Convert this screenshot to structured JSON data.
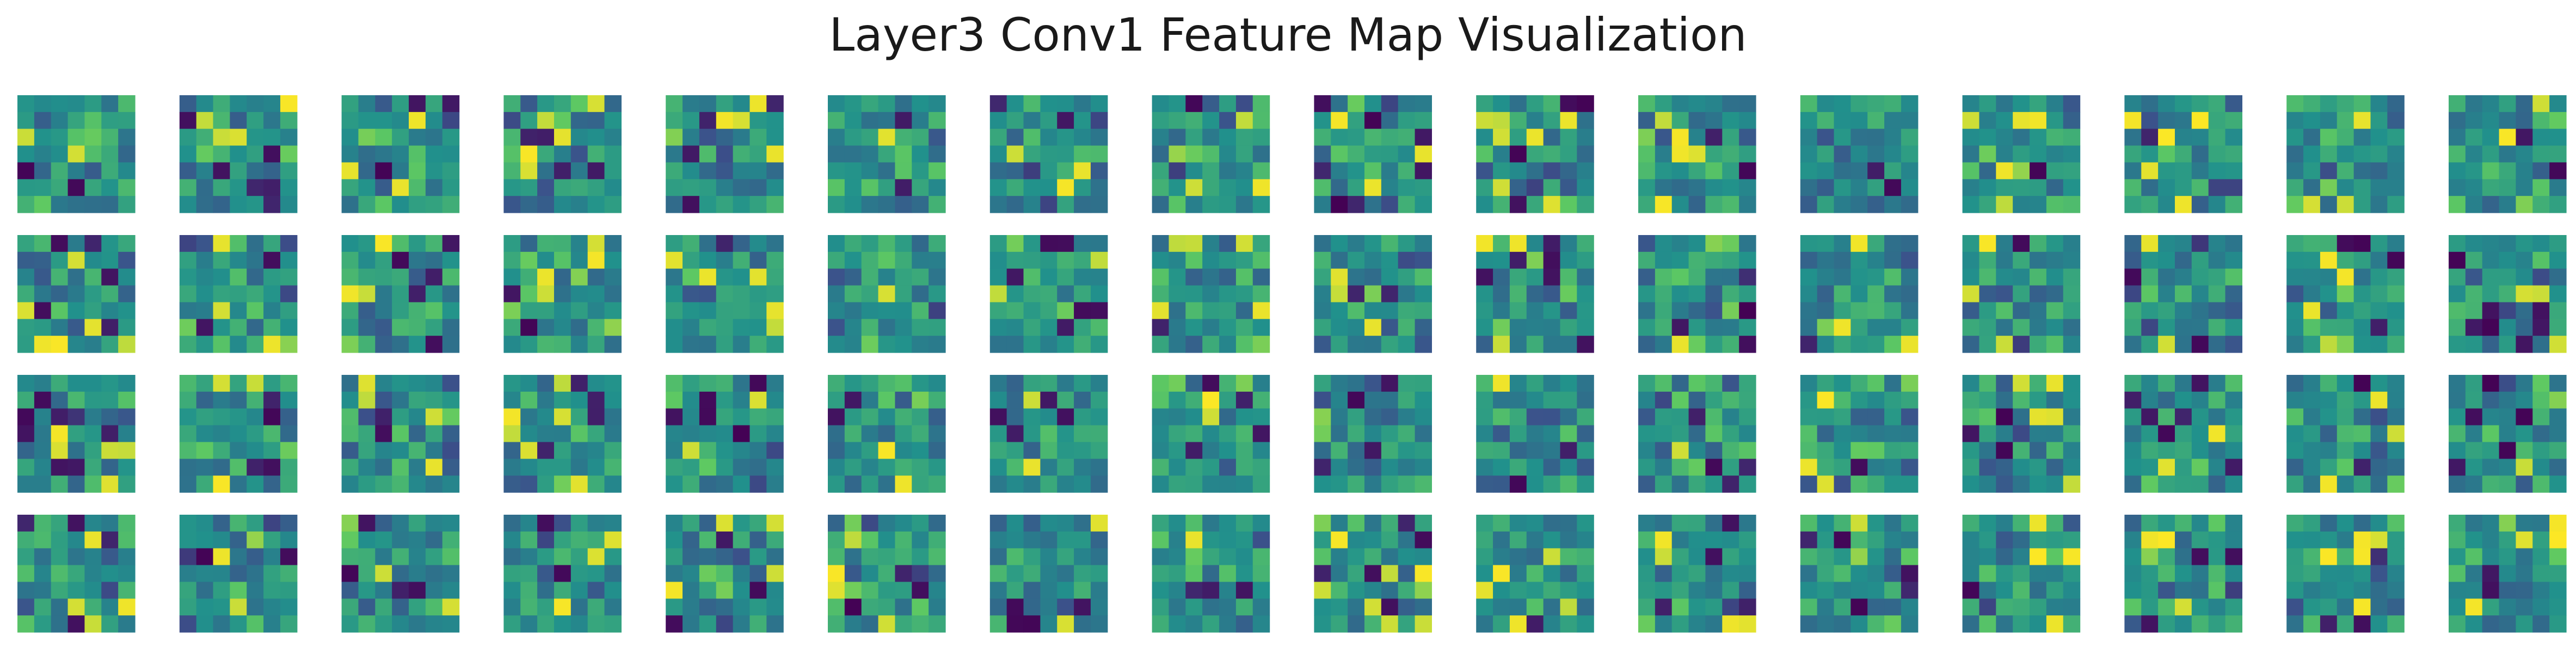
{
  "chart_data": {
    "type": "heatmap",
    "title": "Layer3 Conv1 Feature Map Visualization",
    "layout": {
      "rows": 4,
      "cols": 16
    },
    "map_size": 7,
    "colormap": "viridis",
    "axes_visible": false,
    "value_range": [
      0,
      1
    ],
    "generator_seed": 1337
  }
}
